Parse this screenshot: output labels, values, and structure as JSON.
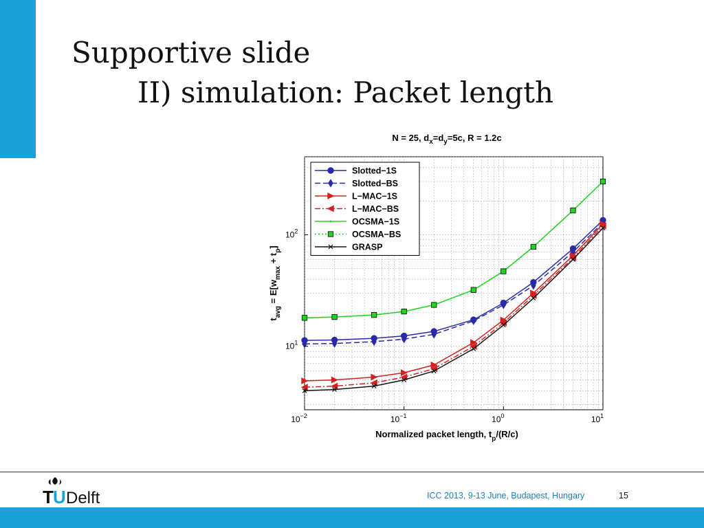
{
  "slide": {
    "title_line1": "Supportive slide",
    "title_line2": "II) simulation: Packet length",
    "footer_text": "ICC 2013, 9-13 June, Budapest, Hungary",
    "page_number": "15",
    "logo_text": "Delft",
    "accent_color": "#1ba1d8"
  },
  "chart_data": {
    "type": "line",
    "title": "N = 25, d_x=d_y=5c, R = 1.2c",
    "xlabel": "Normalized packet length, t_p/(R/c)",
    "ylabel": "t_avg = E[w_max + t_p]",
    "x_scale": "log",
    "y_scale": "log",
    "xlim": [
      0.01,
      10
    ],
    "ylim": [
      2.7,
      500
    ],
    "grid": true,
    "legend_position": "top-left",
    "x_ticks": [
      {
        "value": 0.01,
        "base": "10",
        "exp": "−2"
      },
      {
        "value": 0.1,
        "base": "10",
        "exp": "−1"
      },
      {
        "value": 1,
        "base": "10",
        "exp": "0"
      },
      {
        "value": 10,
        "base": "10",
        "exp": "1"
      }
    ],
    "y_ticks": [
      {
        "value": 10,
        "base": "10",
        "exp": "1"
      },
      {
        "value": 100,
        "base": "10",
        "exp": "2"
      }
    ],
    "x": [
      0.01,
      0.02,
      0.05,
      0.1,
      0.2,
      0.5,
      1,
      2,
      5,
      10
    ],
    "series": [
      {
        "name": "Slotted−1S",
        "color": "#2a2aa8",
        "dash": "solid",
        "marker": "circle",
        "values": [
          11.3,
          11.4,
          11.8,
          12.4,
          13.6,
          17.3,
          24.5,
          37.5,
          75,
          135
        ]
      },
      {
        "name": "Slotted−BS",
        "color": "#2a2aa8",
        "dash": "dashed",
        "marker": "diamond",
        "values": [
          10.5,
          10.6,
          11.0,
          11.6,
          12.8,
          16.9,
          23.5,
          35,
          70,
          128
        ]
      },
      {
        "name": "L−MAC−1S",
        "color": "#d42020",
        "dash": "solid",
        "marker": "triangle-right",
        "values": [
          4.9,
          5.0,
          5.3,
          5.8,
          6.8,
          10.8,
          17.2,
          30,
          65,
          125
        ]
      },
      {
        "name": "L−MAC−BS",
        "color": "#d42020",
        "dash": "dashdot",
        "marker": "triangle-left",
        "values": [
          4.3,
          4.4,
          4.7,
          5.3,
          6.3,
          10.0,
          16.2,
          28.5,
          62,
          120
        ]
      },
      {
        "name": "OCSMA−1S",
        "color": "#1fd61f",
        "dash": "solid",
        "marker": "dot",
        "values": [
          18.0,
          18.3,
          19.1,
          20.5,
          23.5,
          32,
          47,
          78,
          165,
          300
        ]
      },
      {
        "name": "OCSMA−BS",
        "color": "#1fd61f",
        "dash": "dotted",
        "marker": "square",
        "values": [
          18.0,
          18.3,
          19.1,
          20.5,
          23.5,
          32,
          47,
          78,
          165,
          300
        ]
      },
      {
        "name": "GRASP",
        "color": "#111111",
        "dash": "solid",
        "marker": "x",
        "values": [
          4.0,
          4.1,
          4.4,
          5.0,
          6.0,
          9.5,
          15.5,
          27,
          60,
          115
        ]
      }
    ]
  }
}
